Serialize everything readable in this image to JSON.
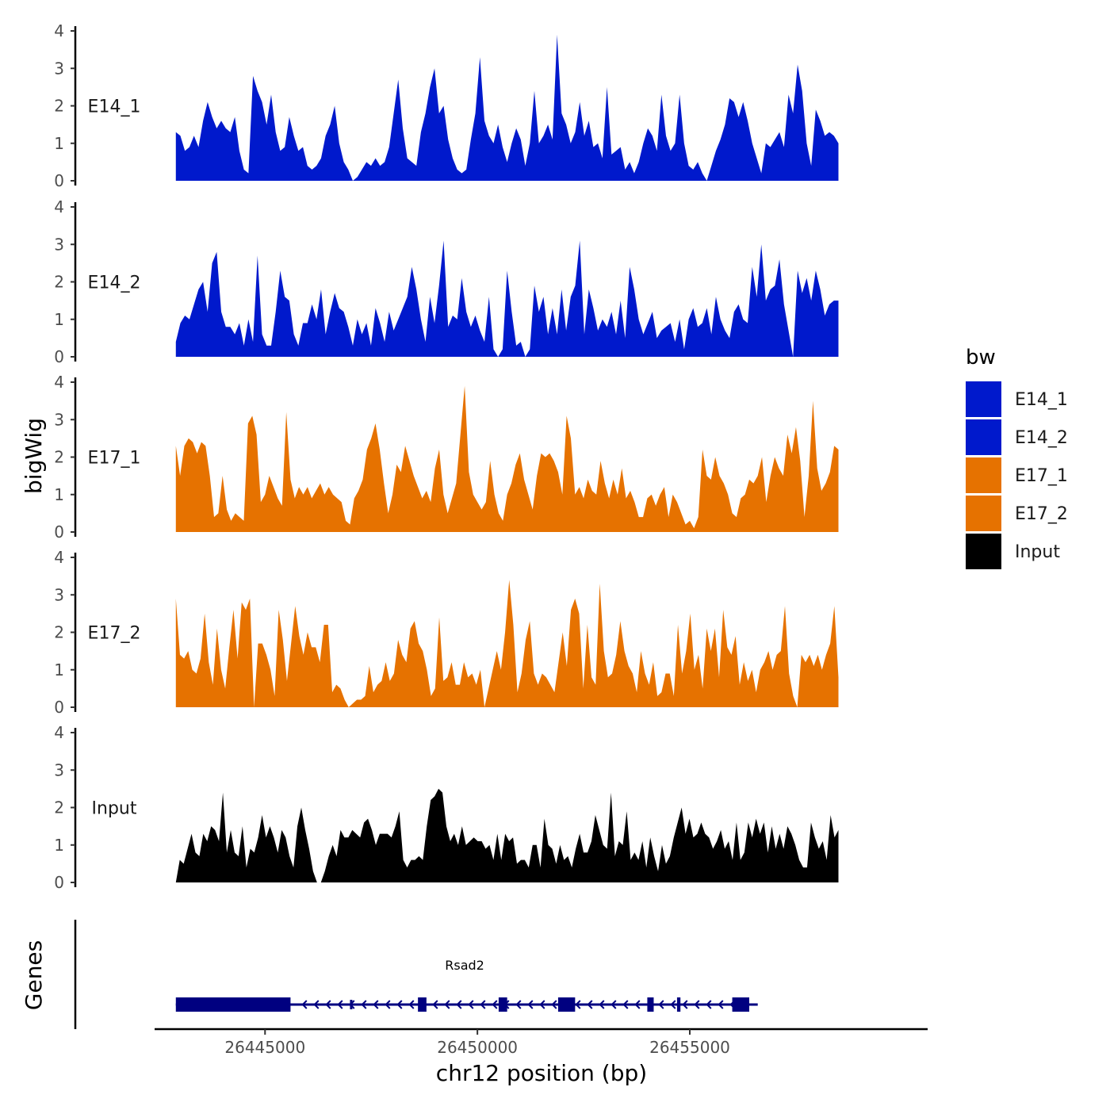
{
  "chart_data": {
    "type": "area",
    "title": "",
    "ylabel": "bigWig",
    "xlabel": "chr12 position (bp)",
    "genes_label": "Genes",
    "xlim": [
      26442400,
      26460600
    ],
    "x_ticks": [
      26445000,
      26450000,
      26455000
    ],
    "x_tick_labels": [
      "26445000",
      "26450000",
      "26455000"
    ],
    "data_range": [
      26442900,
      26458500
    ],
    "ylim": [
      0,
      4
    ],
    "y_ticks": [
      0,
      1,
      2,
      3,
      4
    ],
    "y_tick_labels": [
      "0",
      "1",
      "2",
      "3",
      "4"
    ],
    "legend": {
      "title": "bw",
      "entries": [
        {
          "label": "E14_1",
          "color": "#0019CC"
        },
        {
          "label": "E14_2",
          "color": "#0019CC"
        },
        {
          "label": "E17_1",
          "color": "#E67200"
        },
        {
          "label": "E17_2",
          "color": "#E67200"
        },
        {
          "label": "Input",
          "color": "#000000"
        }
      ]
    },
    "series": [
      {
        "name": "E14_1",
        "color": "#0019CC",
        "values": [
          1.3,
          1.2,
          0.8,
          0.9,
          1.2,
          0.9,
          1.6,
          2.1,
          1.7,
          1.4,
          1.6,
          1.4,
          1.3,
          1.7,
          0.8,
          0.3,
          0.2,
          2.8,
          2.4,
          2.1,
          1.5,
          2.3,
          1.3,
          0.8,
          0.9,
          1.7,
          1.2,
          0.8,
          0.9,
          0.4,
          0.3,
          0.4,
          0.6,
          1.2,
          1.5,
          2.0,
          1.0,
          0.5,
          0.3,
          0.0,
          0.1,
          0.3,
          0.5,
          0.4,
          0.6,
          0.4,
          0.5,
          0.9,
          1.8,
          2.7,
          1.4,
          0.6,
          0.5,
          0.4,
          1.3,
          1.8,
          2.5,
          3.0,
          1.8,
          2.0,
          1.1,
          0.6,
          0.3,
          0.2,
          0.3,
          1.1,
          1.8,
          3.3,
          1.6,
          1.2,
          1.0,
          1.5,
          0.9,
          0.5,
          1.0,
          1.4,
          1.1,
          0.4,
          1.0,
          2.4,
          1.0,
          1.2,
          1.5,
          1.1,
          3.9,
          1.8,
          1.5,
          1.0,
          1.3,
          2.1,
          1.2,
          1.6,
          0.9,
          1.0,
          0.6,
          2.5,
          0.7,
          0.8,
          0.9,
          0.3,
          0.5,
          0.2,
          0.5,
          1.0,
          1.4,
          1.2,
          0.8,
          2.3,
          1.2,
          0.8,
          1.0,
          2.3,
          1.0,
          0.4,
          0.3,
          0.5,
          0.2,
          0.0,
          0.4,
          0.8,
          1.1,
          1.5,
          2.2,
          2.1,
          1.7,
          2.1,
          1.6,
          1.0,
          0.6,
          0.2,
          1.0,
          0.9,
          1.1,
          1.3,
          0.9,
          2.3,
          1.8,
          3.1,
          2.4,
          1.0,
          0.4,
          1.9,
          1.6,
          1.2,
          1.3,
          1.2,
          1.0
        ]
      },
      {
        "name": "E14_2",
        "color": "#0019CC",
        "values": [
          0.4,
          0.9,
          1.1,
          1.0,
          1.4,
          1.8,
          2.0,
          1.2,
          2.5,
          2.8,
          1.2,
          0.8,
          0.8,
          0.6,
          0.9,
          0.3,
          1.0,
          0.4,
          2.7,
          0.6,
          0.3,
          0.3,
          1.2,
          2.3,
          1.6,
          1.5,
          0.6,
          0.3,
          0.9,
          0.9,
          1.4,
          1.0,
          1.8,
          0.6,
          1.2,
          1.7,
          1.3,
          1.2,
          0.8,
          0.3,
          1.0,
          0.6,
          0.9,
          0.3,
          1.3,
          0.9,
          0.4,
          1.2,
          0.7,
          1.0,
          1.3,
          1.6,
          2.4,
          1.8,
          1.0,
          0.4,
          1.6,
          0.9,
          1.9,
          3.1,
          0.8,
          1.1,
          1.0,
          2.1,
          1.2,
          0.8,
          1.1,
          0.7,
          0.4,
          1.6,
          0.2,
          0.0,
          0.2,
          2.3,
          1.2,
          0.3,
          0.4,
          0.0,
          0.2,
          1.9,
          1.2,
          1.6,
          0.6,
          1.3,
          0.6,
          1.8,
          0.7,
          1.6,
          1.9,
          3.1,
          0.6,
          1.8,
          1.3,
          0.7,
          1.0,
          0.8,
          1.2,
          0.6,
          1.5,
          0.5,
          2.4,
          1.8,
          1.0,
          0.6,
          0.9,
          1.2,
          0.5,
          0.7,
          0.8,
          0.9,
          0.4,
          1.0,
          0.2,
          1.0,
          1.3,
          0.8,
          0.9,
          1.3,
          0.6,
          1.6,
          1.0,
          0.7,
          0.5,
          1.2,
          1.4,
          1.0,
          0.9,
          2.4,
          1.6,
          3.0,
          1.5,
          1.8,
          1.9,
          2.6,
          1.4,
          0.7,
          0.0,
          2.3,
          1.7,
          2.1,
          1.5,
          2.3,
          1.8,
          1.1,
          1.4,
          1.5,
          1.5
        ]
      },
      {
        "name": "E17_1",
        "color": "#E67200",
        "values": [
          2.3,
          1.5,
          2.3,
          2.5,
          2.4,
          2.1,
          2.4,
          2.3,
          1.5,
          0.4,
          0.5,
          1.5,
          0.6,
          0.3,
          0.5,
          0.4,
          0.3,
          2.9,
          3.1,
          2.6,
          0.8,
          1.0,
          1.5,
          1.2,
          0.9,
          0.7,
          3.2,
          1.4,
          0.9,
          1.2,
          1.0,
          1.2,
          0.9,
          1.1,
          1.3,
          1.0,
          1.2,
          1.0,
          0.9,
          0.8,
          0.3,
          0.2,
          0.9,
          1.1,
          1.4,
          2.2,
          2.5,
          2.9,
          2.2,
          1.3,
          0.5,
          1.0,
          1.8,
          1.6,
          2.3,
          1.9,
          1.5,
          1.2,
          0.9,
          1.1,
          0.8,
          1.7,
          2.2,
          1.0,
          0.5,
          0.9,
          1.3,
          2.6,
          3.9,
          1.6,
          1.0,
          0.8,
          0.6,
          0.8,
          1.9,
          1.0,
          0.5,
          0.3,
          1.0,
          1.3,
          1.8,
          2.1,
          1.4,
          1.0,
          0.6,
          1.5,
          2.1,
          2.0,
          2.1,
          1.9,
          1.6,
          1.0,
          3.1,
          2.5,
          1.0,
          1.2,
          0.9,
          1.4,
          1.1,
          1.0,
          1.9,
          1.3,
          0.9,
          1.4,
          1.0,
          1.7,
          0.9,
          1.1,
          0.8,
          0.4,
          0.4,
          0.9,
          1.0,
          0.7,
          1.0,
          1.2,
          0.4,
          1.0,
          0.8,
          0.5,
          0.2,
          0.3,
          0.1,
          0.4,
          2.2,
          1.5,
          1.4,
          2.0,
          1.5,
          1.3,
          1.0,
          0.5,
          0.4,
          0.9,
          1.0,
          1.4,
          1.3,
          1.5,
          2.0,
          0.8,
          1.5,
          2.0,
          1.7,
          1.5,
          2.6,
          2.1,
          2.8,
          1.9,
          0.4,
          1.5,
          3.5,
          1.7,
          1.1,
          1.3,
          1.6,
          2.3,
          2.2
        ]
      },
      {
        "name": "E17_2",
        "color": "#E67200",
        "values": [
          2.9,
          1.4,
          1.3,
          1.5,
          1.0,
          0.9,
          1.3,
          2.5,
          1.2,
          0.6,
          2.1,
          1.0,
          0.5,
          1.6,
          2.6,
          1.3,
          2.8,
          2.6,
          2.9,
          0.0,
          1.7,
          1.7,
          1.4,
          1.0,
          0.3,
          2.6,
          1.8,
          0.7,
          1.7,
          2.7,
          1.9,
          1.4,
          2.0,
          1.6,
          1.6,
          1.2,
          2.2,
          2.2,
          0.4,
          0.6,
          0.5,
          0.2,
          0.0,
          0.1,
          0.2,
          0.2,
          0.3,
          1.1,
          0.4,
          0.6,
          0.7,
          1.2,
          0.7,
          0.9,
          1.8,
          1.4,
          1.2,
          2.1,
          2.3,
          1.7,
          1.5,
          1.0,
          0.3,
          0.5,
          2.4,
          0.7,
          0.8,
          1.2,
          0.6,
          0.6,
          1.2,
          0.8,
          0.9,
          0.6,
          1.0,
          0.0,
          0.5,
          1.0,
          1.5,
          1.0,
          2.0,
          3.4,
          2.2,
          0.4,
          0.9,
          1.8,
          2.3,
          0.9,
          0.6,
          0.9,
          0.8,
          0.6,
          0.4,
          1.2,
          2.0,
          1.1,
          2.6,
          2.9,
          2.5,
          0.5,
          2.2,
          0.8,
          0.6,
          3.3,
          1.5,
          0.8,
          0.9,
          1.4,
          2.3,
          1.5,
          1.1,
          0.9,
          0.4,
          1.5,
          0.9,
          0.6,
          1.2,
          0.3,
          0.4,
          0.9,
          0.9,
          0.3,
          2.2,
          0.9,
          1.5,
          2.5,
          1.0,
          1.4,
          0.5,
          2.1,
          1.5,
          2.1,
          0.8,
          2.6,
          1.6,
          1.4,
          1.9,
          0.6,
          1.2,
          0.7,
          1.0,
          0.4,
          1.0,
          1.2,
          1.5,
          1.0,
          1.4,
          1.5,
          2.7,
          0.9,
          0.3,
          0.0,
          1.4,
          1.2,
          1.4,
          1.1,
          1.4,
          1.0,
          1.4,
          1.7,
          2.7,
          0.8
        ]
      },
      {
        "name": "Input",
        "color": "#000000",
        "values": [
          0.0,
          0.6,
          0.5,
          0.9,
          1.3,
          0.8,
          0.7,
          1.3,
          1.1,
          1.5,
          1.4,
          1.1,
          2.4,
          0.8,
          1.4,
          0.8,
          0.7,
          1.5,
          0.4,
          0.9,
          0.8,
          1.2,
          1.8,
          1.2,
          1.5,
          1.2,
          0.8,
          1.4,
          1.2,
          0.7,
          0.4,
          1.5,
          2.0,
          1.4,
          0.9,
          0.3,
          0.0,
          0.0,
          0.3,
          0.7,
          1.0,
          0.7,
          1.4,
          1.2,
          1.2,
          1.4,
          1.3,
          1.2,
          1.6,
          1.7,
          1.4,
          1.0,
          1.3,
          1.3,
          1.3,
          1.2,
          1.5,
          1.9,
          0.6,
          0.4,
          0.6,
          0.6,
          0.7,
          0.6,
          1.5,
          2.2,
          2.3,
          2.5,
          2.4,
          1.5,
          1.1,
          1.3,
          1.0,
          1.5,
          1.0,
          1.1,
          1.2,
          1.1,
          1.1,
          0.9,
          1.0,
          0.6,
          1.3,
          0.6,
          1.3,
          1.1,
          1.2,
          0.5,
          0.6,
          0.6,
          0.4,
          1.0,
          1.0,
          0.4,
          1.7,
          1.0,
          0.9,
          0.5,
          1.0,
          0.6,
          0.7,
          0.4,
          0.9,
          1.3,
          0.8,
          0.8,
          1.1,
          1.8,
          1.4,
          1.0,
          0.9,
          2.4,
          0.7,
          1.1,
          1.0,
          1.9,
          0.6,
          0.8,
          0.6,
          1.1,
          0.4,
          1.2,
          0.7,
          0.3,
          1.0,
          0.5,
          0.7,
          1.2,
          1.6,
          2.0,
          1.3,
          1.7,
          1.2,
          1.3,
          1.6,
          1.3,
          1.2,
          0.9,
          1.1,
          1.4,
          0.9,
          1.1,
          0.6,
          1.6,
          0.6,
          0.8,
          1.6,
          1.2,
          1.7,
          1.3,
          1.6,
          0.8,
          1.5,
          0.9,
          1.3,
          0.9,
          1.5,
          1.3,
          1.0,
          0.6,
          0.4,
          0.4,
          1.6,
          1.2,
          0.9,
          1.1,
          0.6,
          1.8,
          1.2,
          1.4
        ]
      }
    ],
    "gene_track": {
      "gene": "Rsad2",
      "strand": "-",
      "color": "#000080",
      "span": [
        26442900,
        26456600
      ],
      "label_position": 26449700,
      "exons": [
        [
          26442900,
          26445600
        ],
        [
          26447000,
          26447010
        ],
        [
          26448600,
          26448800
        ],
        [
          26450500,
          26450700
        ],
        [
          26451900,
          26452300
        ],
        [
          26454000,
          26454150
        ],
        [
          26454700,
          26454780
        ],
        [
          26456000,
          26456400
        ]
      ]
    }
  }
}
